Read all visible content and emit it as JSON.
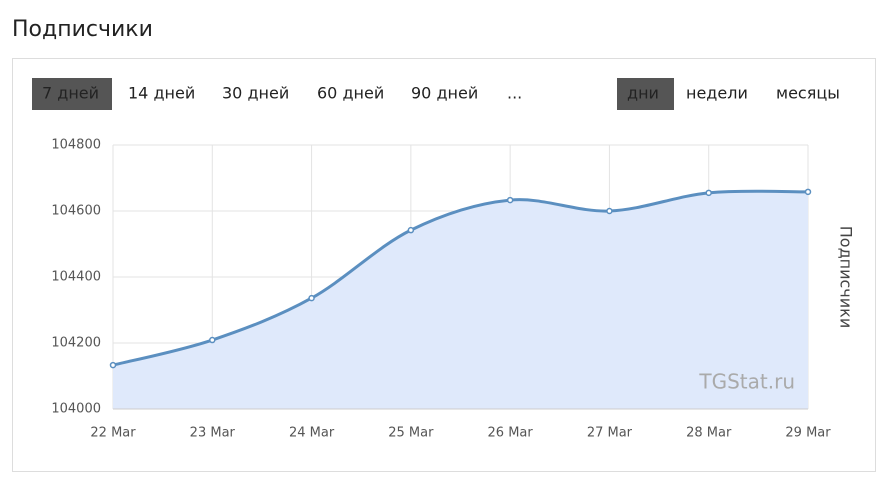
{
  "header": {
    "title": "Подписчики"
  },
  "periods": [
    {
      "label": "7 дней",
      "active": true
    },
    {
      "label": "14 дней",
      "active": false
    },
    {
      "label": "30 дней",
      "active": false
    },
    {
      "label": "60 дней",
      "active": false
    },
    {
      "label": "90 дней",
      "active": false
    },
    {
      "label": "...",
      "active": false
    }
  ],
  "granularity": [
    {
      "label": "дни",
      "active": true
    },
    {
      "label": "недели",
      "active": false
    },
    {
      "label": "месяцы",
      "active": false
    }
  ],
  "chart_data": {
    "type": "area",
    "watermark": "TGStat.ru",
    "y_label": "Подписчики",
    "categories": [
      "22 Mar",
      "23 Mar",
      "24 Mar",
      "25 Mar",
      "26 Mar",
      "27 Mar",
      "28 Mar",
      "29 Mar"
    ],
    "series": [
      {
        "name": "Подписчики",
        "color": "#5b8fc0",
        "fill": "#dfe9fb",
        "values": [
          104133,
          104209,
          104336,
          104542,
          104633,
          104600,
          104655,
          104658
        ]
      }
    ],
    "ylim": [
      104000,
      104800
    ],
    "yticks": [
      104000,
      104200,
      104400,
      104600,
      104800
    ],
    "grid": true
  }
}
